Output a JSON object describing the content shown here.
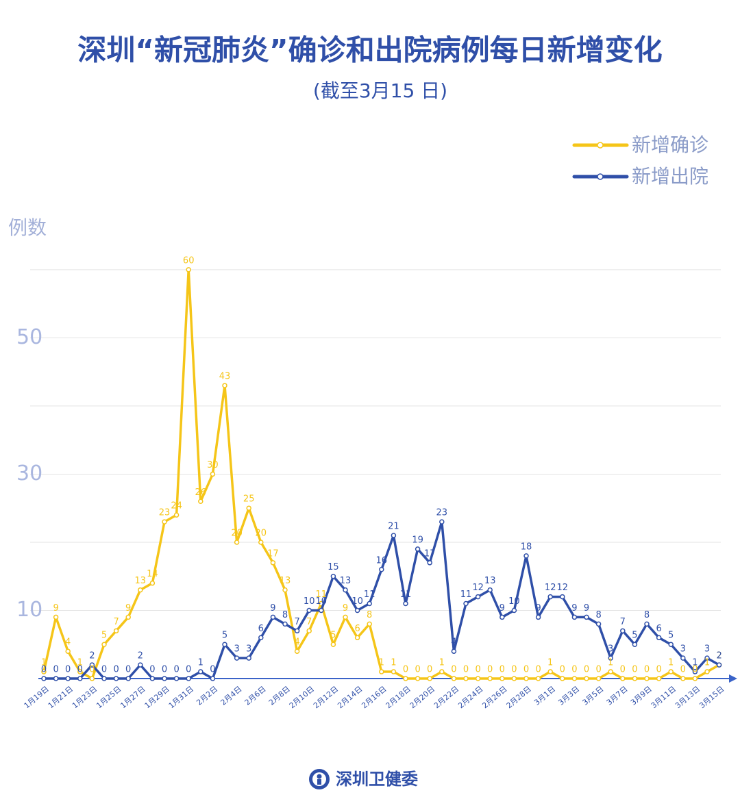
{
  "chart_data": {
    "type": "line",
    "title": "深圳“新冠肺炎”确诊和出院病例每日新增变化",
    "subtitle": "(截至3月15 日)",
    "y_label": "例数",
    "source": "深圳卫健委",
    "categories": [
      "1月19日",
      null,
      "1月21日",
      null,
      "1月23日",
      null,
      "1月25日",
      null,
      "1月27日",
      null,
      "1月29日",
      null,
      "1月31日",
      null,
      "2月2日",
      null,
      "2月4日",
      null,
      "2月6日",
      null,
      "2月8日",
      null,
      "2月10日",
      null,
      "2月12日",
      null,
      "2月14日",
      null,
      "2月16日",
      null,
      "2月18日",
      null,
      "2月20日",
      null,
      "2月22日",
      null,
      "2月24日",
      null,
      "2月26日",
      null,
      "2月28日",
      null,
      "3月1日",
      null,
      "3月3日",
      null,
      "3月5日",
      null,
      "3月7日",
      null,
      "3月9日",
      null,
      "3月11日",
      null,
      "3月13日",
      null,
      "3月15日"
    ],
    "series": [
      {
        "name": "新增确诊",
        "color": "#f5c518",
        "values": [
          1,
          9,
          4,
          1,
          0,
          5,
          7,
          9,
          13,
          14,
          23,
          24,
          60,
          26,
          30,
          43,
          20,
          25,
          20,
          17,
          13,
          4,
          7,
          11,
          5,
          9,
          6,
          8,
          1,
          1,
          0,
          0,
          0,
          1,
          0,
          0,
          0,
          0,
          0,
          0,
          0,
          0,
          1,
          0,
          0,
          0,
          0,
          1,
          0,
          0,
          0,
          0,
          1,
          0,
          0,
          1,
          2
        ]
      },
      {
        "name": "新增出院",
        "color": "#2f4fa8",
        "values": [
          0,
          0,
          0,
          0,
          2,
          0,
          0,
          0,
          2,
          0,
          0,
          0,
          0,
          1,
          0,
          5,
          3,
          3,
          6,
          9,
          8,
          7,
          10,
          10,
          15,
          13,
          10,
          11,
          16,
          21,
          11,
          19,
          17,
          23,
          4,
          11,
          12,
          13,
          9,
          10,
          18,
          9,
          12,
          12,
          9,
          9,
          8,
          3,
          7,
          5,
          8,
          6,
          5,
          3,
          1,
          3,
          2
        ]
      }
    ],
    "ylim": [
      0,
      62
    ],
    "yticks": [
      10,
      30,
      50
    ],
    "ygrid": [
      10,
      20,
      30,
      40,
      50,
      60
    ]
  }
}
